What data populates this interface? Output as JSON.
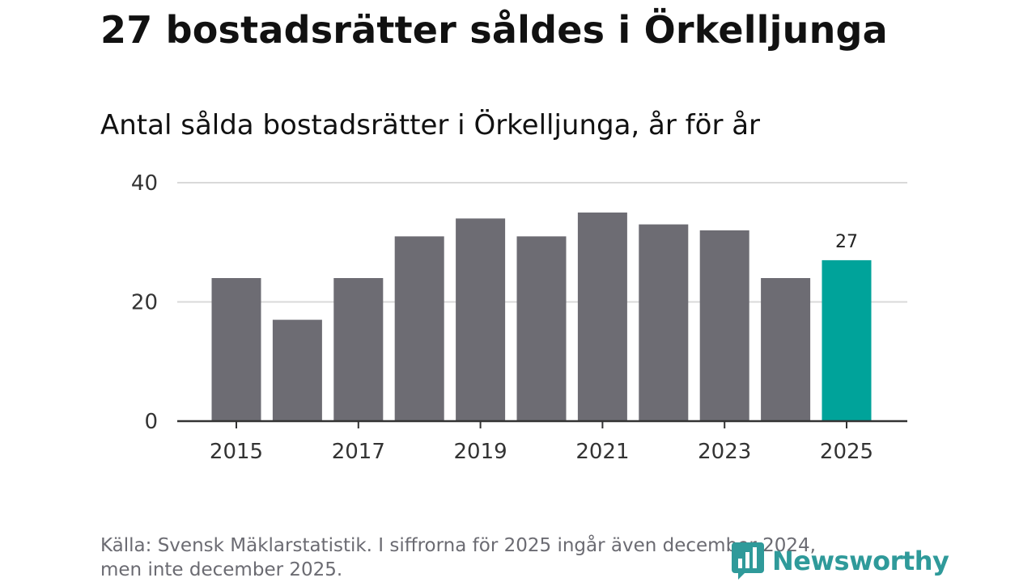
{
  "headline": "27 bostadsrätter såldes i Örkelljunga",
  "source_text": "Källa: Svensk Mäklarstatistik. I siffrorna för 2025 ingår även december 2024, men inte december 2025.",
  "brand": {
    "name": "Newsworthy",
    "icon": "newsworthy-logo-icon",
    "color": "#2f9a9a"
  },
  "colors": {
    "bar": "#6d6c73",
    "highlight": "#00a39a",
    "grid": "#d9d9d9",
    "axis": "#333333"
  },
  "chart_data": {
    "type": "bar",
    "title": "Antal sålda bostadsrätter i Örkelljunga, år för år",
    "xlabel": "",
    "ylabel": "",
    "categories": [
      "2015",
      "2016",
      "2017",
      "2018",
      "2019",
      "2020",
      "2021",
      "2022",
      "2023",
      "2024",
      "2025"
    ],
    "values": [
      24,
      17,
      24,
      31,
      34,
      31,
      35,
      33,
      32,
      24,
      27
    ],
    "x_tick_labels": [
      "2015",
      "2017",
      "2019",
      "2021",
      "2023",
      "2025"
    ],
    "y_ticks": [
      0,
      20,
      40
    ],
    "y_tick_labels": [
      "0",
      "20",
      "40"
    ],
    "ylim": [
      0,
      40
    ],
    "grid": true,
    "highlight": {
      "category": "2025",
      "label": "27"
    }
  }
}
